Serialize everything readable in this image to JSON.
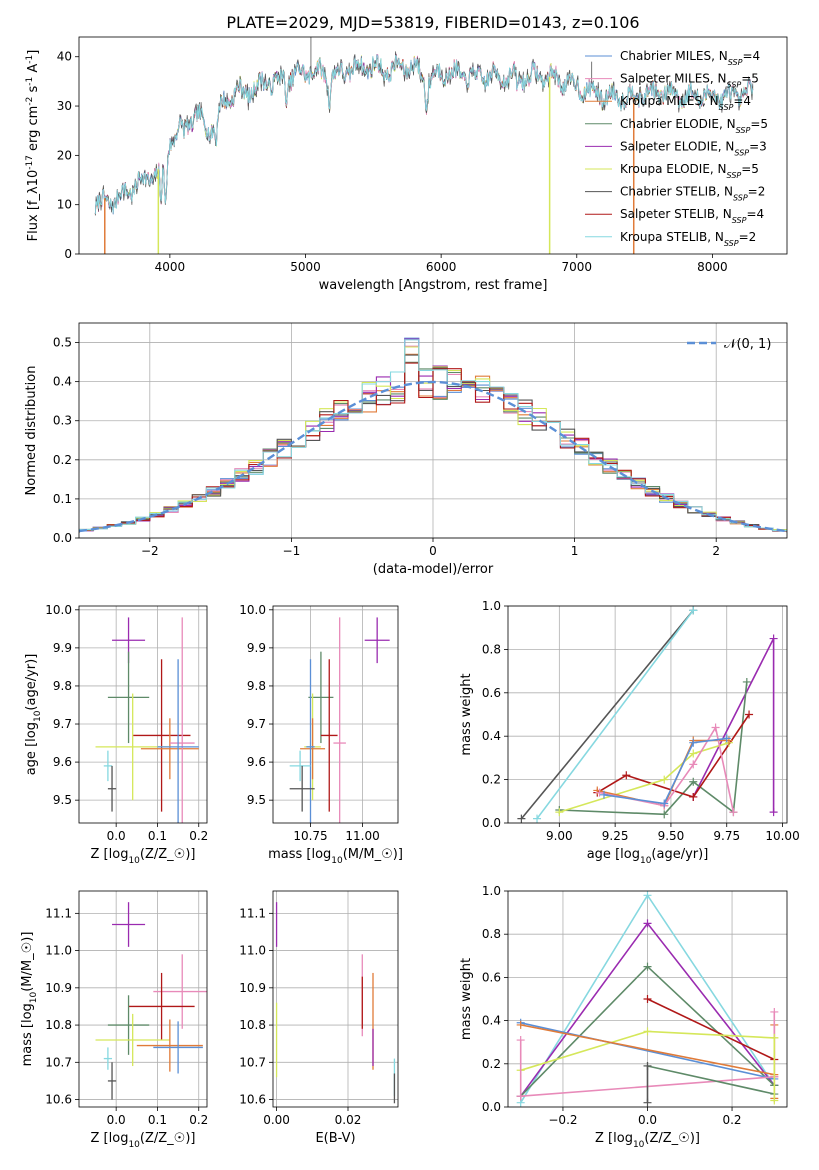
{
  "figure": {
    "title": "PLATE=2029, MJD=53819, FIBERID=0143, z=0.106"
  },
  "colors": {
    "Chabrier MILES": "#5b8fd6",
    "Salpeter MILES": "#e88ab9",
    "Kroupa MILES": "#e07b39",
    "Chabrier ELODIE": "#5e8a68",
    "Salpeter ELODIE": "#9a2bb0",
    "Kroupa ELODIE": "#d5e75a",
    "Chabrier STELIB": "#555555",
    "Salpeter STELIB": "#b01818",
    "Kroupa STELIB": "#86d8e0"
  },
  "chart_data": [
    {
      "id": "spectrum",
      "type": "line",
      "xlabel": "wavelength [Angstrom, rest frame]",
      "ylabel": "Flux [f_λ10^-17 erg cm^-2 s^-1 A^-1]",
      "xlim": [
        3330,
        8550
      ],
      "ylim": [
        0,
        44
      ],
      "xticks": [
        4000,
        5000,
        6000,
        7000,
        8000
      ],
      "yticks": [
        0,
        10,
        20,
        30,
        40
      ],
      "grid": false,
      "legend": "upper right",
      "series": [
        {
          "name": "Chabrier MILES",
          "nssp": "4"
        },
        {
          "name": "Salpeter MILES",
          "nssp": "5"
        },
        {
          "name": "Kroupa MILES",
          "nssp": "4"
        },
        {
          "name": "Chabrier ELODIE",
          "nssp": "5"
        },
        {
          "name": "Salpeter ELODIE",
          "nssp": "3"
        },
        {
          "name": "Kroupa ELODIE",
          "nssp": "5"
        },
        {
          "name": "Chabrier STELIB",
          "nssp": "2"
        },
        {
          "name": "Salpeter STELIB",
          "nssp": "4"
        },
        {
          "name": "Kroupa STELIB",
          "nssp": "2"
        }
      ],
      "continuum_x": [
        3450,
        3600,
        3700,
        3800,
        3950,
        4000,
        4100,
        4200,
        4300,
        4400,
        4500,
        4600,
        4700,
        4800,
        4900,
        5000,
        5100,
        5200,
        5300,
        5400,
        5500,
        5600,
        5700,
        5800,
        5900,
        6000,
        6200,
        6400,
        6600,
        6800,
        7000,
        7200,
        7400,
        7600,
        7800,
        8000,
        8200,
        8300
      ],
      "continuum_y": [
        10,
        11,
        13,
        15,
        17,
        23,
        26,
        28,
        25,
        31,
        33,
        33,
        35,
        35,
        36,
        37,
        37,
        36,
        37,
        38,
        38,
        37,
        38,
        38,
        35,
        37,
        36,
        36,
        36,
        36,
        34,
        32,
        32,
        33,
        32,
        32,
        32,
        33
      ],
      "features": [
        [
          3934,
          10
        ],
        [
          3968,
          9
        ],
        [
          4102,
          24
        ],
        [
          4340,
          22
        ],
        [
          4861,
          31
        ],
        [
          5175,
          31
        ],
        [
          5893,
          30
        ],
        [
          6563,
          33
        ]
      ],
      "dropouts": [
        {
          "x": 3520,
          "color": "#e07b39"
        },
        {
          "x": 3915,
          "color": "#d5e75a"
        },
        {
          "x": 6800,
          "color": "#d5e75a"
        },
        {
          "x": 7420,
          "color": "#e07b39"
        }
      ],
      "spikes": [
        {
          "x": 5040,
          "y": 44
        },
        {
          "x": 7110,
          "y": 39
        }
      ]
    },
    {
      "id": "residuals",
      "type": "step",
      "xlabel": "(data-model)/error",
      "ylabel": "Normed distribution",
      "xlim": [
        -2.5,
        2.5
      ],
      "ylim": [
        0,
        0.55
      ],
      "xticks": [
        -2,
        -1,
        0,
        1,
        2
      ],
      "yticks": [
        0.0,
        0.1,
        0.2,
        0.3,
        0.4,
        0.5
      ],
      "grid": true,
      "legend": "upper right",
      "reference": {
        "name": "𝒩(0, 1)",
        "color": "#5b8fd6"
      },
      "bin_width": 0.1
    },
    {
      "id": "z_age",
      "type": "errorbar",
      "xlabel": "Z [log10(Z/Z☉)]",
      "ylabel": "age  [log10(age/yr)]",
      "xlim": [
        -0.09,
        0.22
      ],
      "ylim": [
        9.44,
        10.01
      ],
      "xticks": [
        0.0,
        0.1,
        0.2
      ],
      "yticks": [
        9.5,
        9.6,
        9.7,
        9.8,
        9.9,
        10.0
      ],
      "grid": true,
      "points": [
        {
          "series": "Salpeter ELODIE",
          "x": 0.03,
          "y": 9.92,
          "xerr": 0.04,
          "yerr": 0.06
        },
        {
          "series": "Chabrier ELODIE",
          "x": 0.03,
          "y": 9.77,
          "xerr": 0.05,
          "yerr": 0.12
        },
        {
          "series": "Salpeter STELIB",
          "x": 0.11,
          "y": 9.67,
          "xerr": 0.07,
          "yerr": 0.2
        },
        {
          "series": "Kroupa ELODIE",
          "x": 0.04,
          "y": 9.64,
          "xerr": 0.09,
          "yerr": 0.14
        },
        {
          "series": "Kroupa MILES",
          "x": 0.13,
          "y": 9.635,
          "xerr": 0.07,
          "yerr": 0.08
        },
        {
          "series": "Salpeter MILES",
          "x": 0.16,
          "y": 9.65,
          "xerr": 0.03,
          "yerr": 0.33
        },
        {
          "series": "Chabrier MILES",
          "x": 0.15,
          "y": 9.64,
          "xerr": 0.05,
          "yerr": 0.23
        },
        {
          "series": "Kroupa STELIB",
          "x": -0.02,
          "y": 9.59,
          "xerr": 0.01,
          "yerr": 0.04
        },
        {
          "series": "Chabrier STELIB",
          "x": -0.01,
          "y": 9.53,
          "xerr": 0.01,
          "yerr": 0.06
        }
      ]
    },
    {
      "id": "mass_age",
      "type": "errorbar",
      "xlabel": "mass [log10(M/M☉)]",
      "ylabel": "",
      "xlim": [
        10.57,
        11.17
      ],
      "ylim": [
        9.44,
        10.01
      ],
      "xticks": [
        10.75,
        11.0
      ],
      "yticks": [
        9.5,
        9.6,
        9.7,
        9.8,
        9.9,
        10.0
      ],
      "grid": true,
      "points": [
        {
          "series": "Salpeter ELODIE",
          "x": 11.07,
          "y": 9.92,
          "xerr": 0.06,
          "yerr": 0.06
        },
        {
          "series": "Chabrier ELODIE",
          "x": 10.8,
          "y": 9.77,
          "xerr": 0.06,
          "yerr": 0.12
        },
        {
          "series": "Salpeter STELIB",
          "x": 10.84,
          "y": 9.67,
          "xerr": 0.04,
          "yerr": 0.2
        },
        {
          "series": "Kroupa ELODIE",
          "x": 10.76,
          "y": 9.64,
          "xerr": 0.04,
          "yerr": 0.14
        },
        {
          "series": "Kroupa MILES",
          "x": 10.76,
          "y": 9.635,
          "xerr": 0.06,
          "yerr": 0.08
        },
        {
          "series": "Salpeter MILES",
          "x": 10.89,
          "y": 9.65,
          "xerr": 0.03,
          "yerr": 0.33
        },
        {
          "series": "Chabrier MILES",
          "x": 10.75,
          "y": 9.64,
          "xerr": 0.02,
          "yerr": 0.23
        },
        {
          "series": "Kroupa STELIB",
          "x": 10.7,
          "y": 9.59,
          "xerr": 0.05,
          "yerr": 0.04
        },
        {
          "series": "Chabrier STELIB",
          "x": 10.71,
          "y": 9.53,
          "xerr": 0.06,
          "yerr": 0.06
        }
      ]
    },
    {
      "id": "age_weight",
      "type": "line",
      "xlabel": "age  [log10(age/yr)]",
      "ylabel": "mass weight",
      "xlim": [
        8.77,
        10.02
      ],
      "ylim": [
        0,
        1
      ],
      "xticks": [
        9.0,
        9.25,
        9.5,
        9.75,
        10.0
      ],
      "yticks": [
        0.0,
        0.2,
        0.4,
        0.6,
        0.8,
        1.0
      ],
      "grid": true,
      "series": [
        {
          "name": "Chabrier STELIB",
          "x": [
            8.83,
            9.6
          ],
          "y": [
            0.02,
            0.98
          ]
        },
        {
          "name": "Kroupa STELIB",
          "x": [
            8.9,
            9.6
          ],
          "y": [
            0.02,
            0.98
          ]
        },
        {
          "name": "Salpeter ELODIE",
          "x": [
            9.6,
            9.96,
            9.96
          ],
          "y": [
            0.12,
            0.85,
            0.05
          ]
        },
        {
          "name": "Chabrier ELODIE",
          "x": [
            9.0,
            9.47,
            9.6,
            9.78,
            9.84
          ],
          "y": [
            0.06,
            0.04,
            0.19,
            0.05,
            0.65
          ]
        },
        {
          "name": "Salpeter STELIB",
          "x": [
            9.17,
            9.3,
            9.6,
            9.85
          ],
          "y": [
            0.14,
            0.22,
            0.12,
            0.5
          ]
        },
        {
          "name": "Kroupa ELODIE",
          "x": [
            9.0,
            9.47,
            9.6,
            9.76
          ],
          "y": [
            0.05,
            0.2,
            0.32,
            0.37
          ]
        },
        {
          "name": "Kroupa MILES",
          "x": [
            9.17,
            9.47,
            9.6,
            9.76
          ],
          "y": [
            0.15,
            0.08,
            0.38,
            0.38
          ]
        },
        {
          "name": "Salpeter MILES",
          "x": [
            9.18,
            9.47,
            9.6,
            9.7,
            9.78
          ],
          "y": [
            0.14,
            0.08,
            0.27,
            0.44,
            0.05
          ]
        },
        {
          "name": "Chabrier MILES",
          "x": [
            9.2,
            9.47,
            9.6,
            9.75
          ],
          "y": [
            0.13,
            0.09,
            0.37,
            0.39
          ]
        }
      ]
    },
    {
      "id": "z_mass",
      "type": "errorbar",
      "xlabel": "Z [log10(Z/Z☉)]",
      "ylabel": "mass [log10(M/M☉)]",
      "xlim": [
        -0.09,
        0.22
      ],
      "ylim": [
        10.58,
        11.16
      ],
      "xticks": [
        0.0,
        0.1,
        0.2
      ],
      "yticks": [
        10.6,
        10.7,
        10.8,
        10.9,
        11.0,
        11.1
      ],
      "grid": true,
      "points": [
        {
          "series": "Salpeter ELODIE",
          "x": 0.03,
          "y": 11.07,
          "xerr": 0.04,
          "yerr": 0.06
        },
        {
          "series": "Salpeter MILES",
          "x": 0.16,
          "y": 10.89,
          "xerr": 0.07,
          "yerr": 0.1
        },
        {
          "series": "Salpeter STELIB",
          "x": 0.11,
          "y": 10.85,
          "xerr": 0.08,
          "yerr": 0.09
        },
        {
          "series": "Chabrier ELODIE",
          "x": 0.03,
          "y": 10.8,
          "xerr": 0.05,
          "yerr": 0.08
        },
        {
          "series": "Kroupa ELODIE",
          "x": 0.04,
          "y": 10.76,
          "xerr": 0.09,
          "yerr": 0.07
        },
        {
          "series": "Kroupa MILES",
          "x": 0.13,
          "y": 10.745,
          "xerr": 0.08,
          "yerr": 0.07
        },
        {
          "series": "Chabrier MILES",
          "x": 0.15,
          "y": 10.74,
          "xerr": 0.06,
          "yerr": 0.07
        },
        {
          "series": "Kroupa STELIB",
          "x": -0.02,
          "y": 10.71,
          "xerr": 0.01,
          "yerr": 0.03
        },
        {
          "series": "Chabrier STELIB",
          "x": -0.01,
          "y": 10.65,
          "xerr": 0.01,
          "yerr": 0.05
        }
      ]
    },
    {
      "id": "ebv_mass",
      "type": "errorbar",
      "xlabel": "E(B-V)",
      "ylabel": "",
      "xlim": [
        -0.001,
        0.034
      ],
      "ylim": [
        10.58,
        11.16
      ],
      "xticks": [
        0.0,
        0.02
      ],
      "yticks": [
        10.6,
        10.7,
        10.8,
        10.9,
        11.0,
        11.1
      ],
      "grid": true,
      "points": [
        {
          "series": "Salpeter ELODIE",
          "x": 0.0,
          "y": 11.07,
          "xerr": 0.0,
          "yerr": 0.06
        },
        {
          "series": "Kroupa ELODIE",
          "x": 0.0,
          "y": 10.76,
          "xerr": 0.0,
          "yerr": 0.1
        },
        {
          "series": "Salpeter MILES",
          "x": 0.024,
          "y": 10.88,
          "xerr": 0.0,
          "yerr": 0.11
        },
        {
          "series": "Salpeter STELIB",
          "x": 0.024,
          "y": 10.86,
          "xerr": 0.0,
          "yerr": 0.07
        },
        {
          "series": "Kroupa MILES",
          "x": 0.027,
          "y": 10.81,
          "xerr": 0.0,
          "yerr": 0.13
        },
        {
          "series": "Salpeter ELODIE",
          "x": 0.027,
          "y": 10.74,
          "xerr": 0.0,
          "yerr": 0.05
        },
        {
          "series": "Kroupa STELIB",
          "x": 0.033,
          "y": 10.66,
          "xerr": 0.0,
          "yerr": 0.05
        },
        {
          "series": "Chabrier STELIB",
          "x": 0.033,
          "y": 10.63,
          "xerr": 0.0,
          "yerr": 0.04
        }
      ]
    },
    {
      "id": "z_weight",
      "type": "line",
      "xlabel": "Z [log10(Z/Z☉)]",
      "ylabel": "mass weight",
      "xlim": [
        -0.33,
        0.33
      ],
      "ylim": [
        0,
        1
      ],
      "xticks": [
        -0.2,
        0.0,
        0.2
      ],
      "yticks": [
        0.0,
        0.2,
        0.4,
        0.6,
        0.8,
        1.0
      ],
      "grid": true,
      "series": [
        {
          "name": "Kroupa STELIB",
          "x": [
            -0.3,
            0.0,
            0.3
          ],
          "y": [
            0.02,
            0.98,
            0.1
          ]
        },
        {
          "name": "Salpeter ELODIE",
          "x": [
            -0.3,
            0.0,
            0.3
          ],
          "y": [
            0.05,
            0.85,
            0.1
          ]
        },
        {
          "name": "Chabrier ELODIE",
          "x": [
            -0.3,
            0.0,
            0.3
          ],
          "y": [
            0.05,
            0.65,
            0.1
          ]
        },
        {
          "name": "Salpeter STELIB",
          "x": [
            0.0,
            0.3
          ],
          "y": [
            0.5,
            0.22
          ]
        },
        {
          "name": "Kroupa ELODIE",
          "x": [
            -0.3,
            0.0,
            0.3
          ],
          "y": [
            0.17,
            0.35,
            0.32
          ]
        },
        {
          "name": "Chabrier MILES",
          "x": [
            -0.3,
            0.3
          ],
          "y": [
            0.39,
            0.13
          ]
        },
        {
          "name": "Kroupa MILES",
          "x": [
            -0.3,
            0.3
          ],
          "y": [
            0.38,
            0.15
          ]
        },
        {
          "name": "Salpeter MILES",
          "x": [
            -0.3,
            0.3
          ],
          "y": [
            0.05,
            0.14
          ]
        },
        {
          "name": "Chabrier ELODIE",
          "x": [
            0.0,
            0.3
          ],
          "y": [
            0.19,
            0.06
          ]
        },
        {
          "name": "Salpeter MILES",
          "x": [
            -0.3,
            -0.3
          ],
          "y": [
            0.05,
            0.31
          ]
        },
        {
          "name": "Kroupa MILES",
          "x": [
            0.3,
            0.3
          ],
          "y": [
            0.04,
            0.38
          ]
        },
        {
          "name": "Salpeter MILES",
          "x": [
            0.3,
            0.3
          ],
          "y": [
            0.14,
            0.44
          ]
        },
        {
          "name": "Chabrier STELIB",
          "x": [
            0.0,
            0.0
          ],
          "y": [
            0.02,
            0.19
          ]
        },
        {
          "name": "Kroupa ELODIE",
          "x": [
            0.3,
            0.3
          ],
          "y": [
            0.03,
            0.32
          ]
        }
      ]
    }
  ]
}
